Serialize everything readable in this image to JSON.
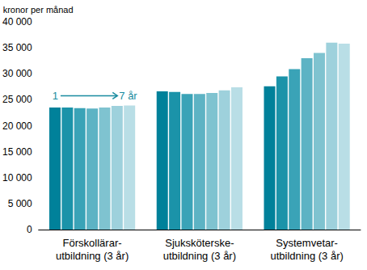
{
  "chart_data": {
    "type": "bar",
    "y_label": "kronor per månad",
    "categories": [
      "Förskollärar-\nutbildning (3 år)",
      "Sjuksköterske-\nutbildning (3 år)",
      "Systemvetar-\nutbildning (3 år)"
    ],
    "series": [
      {
        "color": "#00819a",
        "values": [
          23500,
          26600,
          27600
        ]
      },
      {
        "color": "#1b93a9",
        "values": [
          23500,
          26500,
          29500
        ]
      },
      {
        "color": "#3aa3b7",
        "values": [
          23400,
          26100,
          30900
        ]
      },
      {
        "color": "#5db3c4",
        "values": [
          23300,
          26100,
          33000
        ]
      },
      {
        "color": "#7fc3d0",
        "values": [
          23500,
          26300,
          34000
        ]
      },
      {
        "color": "#9ed1dc",
        "values": [
          23800,
          26800,
          36000
        ]
      },
      {
        "color": "#b9dee6",
        "values": [
          23900,
          27400,
          35800
        ]
      }
    ],
    "annotations": [
      "1",
      "7 år"
    ],
    "ylim": [
      0,
      40000
    ],
    "yticks": [
      0,
      {
        "value": 5000,
        "label": "5 000"
      },
      {
        "value": 10000,
        "label": "10 000"
      },
      {
        "value": 15000,
        "label": "15 000"
      },
      {
        "value": 20000,
        "label": "20 000"
      },
      {
        "value": 25000,
        "label": "25 000"
      },
      {
        "value": 30000,
        "label": "30 000"
      },
      {
        "value": 35000,
        "label": "35 000"
      },
      {
        "value": 40000,
        "label": "40 000"
      }
    ],
    "grid": false
  }
}
